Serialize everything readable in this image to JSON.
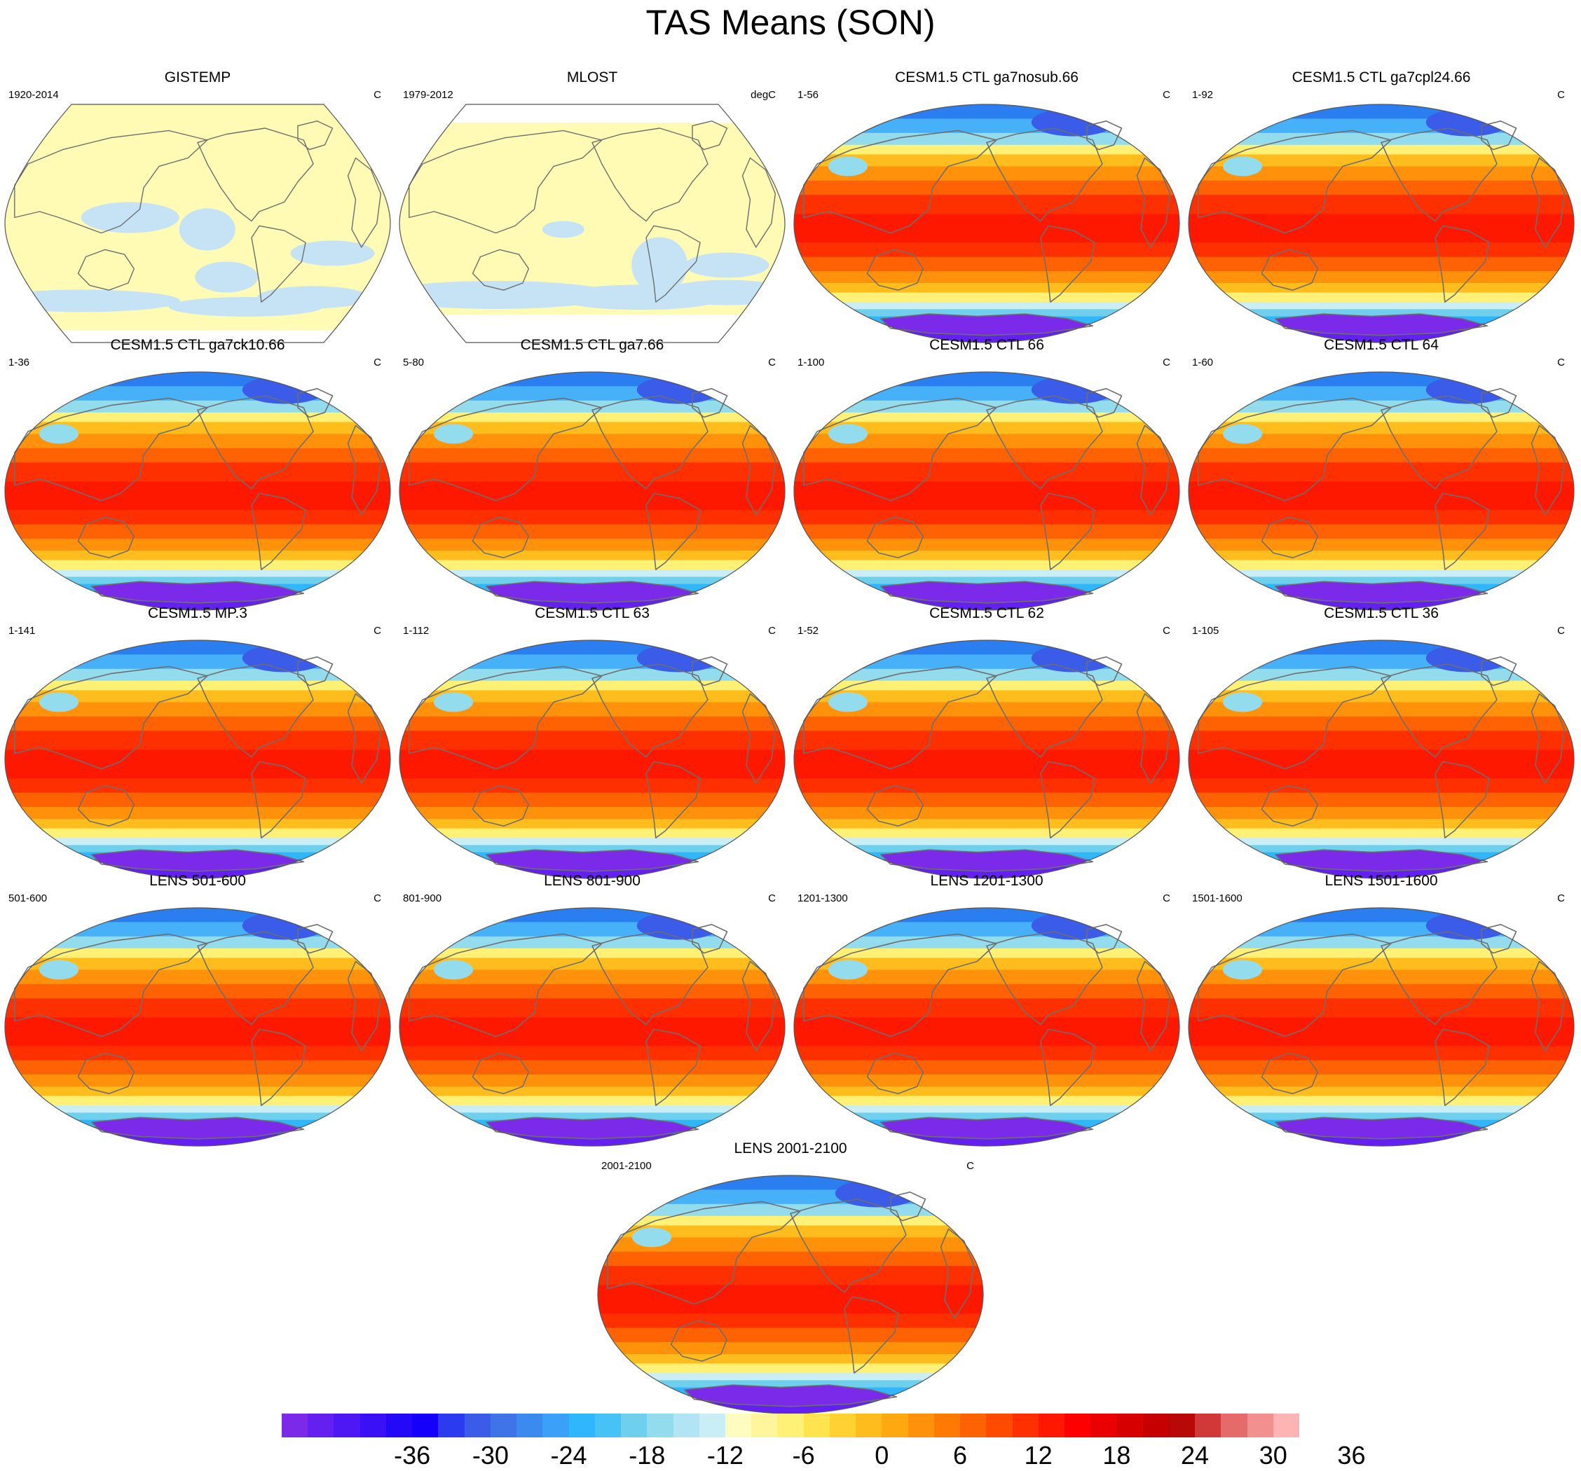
{
  "figure": {
    "title": "TAS Means (SON)"
  },
  "colors": {
    "obs_warm": "#fffbb5",
    "obs_cold": "#c5e3f5",
    "land_outline": "#6e6e6e"
  },
  "panels": [
    {
      "title": "GISTEMP",
      "years": "1920-2014",
      "units": "C",
      "style": "obs"
    },
    {
      "title": "MLOST",
      "years": "1979-2012",
      "units": "degC",
      "style": "obs"
    },
    {
      "title": "CESM1.5 CTL ga7nosub.66",
      "years": "1-56",
      "units": "C",
      "style": "model"
    },
    {
      "title": "CESM1.5 CTL ga7cpl24.66",
      "years": "1-92",
      "units": "C",
      "style": "model"
    },
    {
      "title": "CESM1.5 CTL ga7ck10.66",
      "years": "1-36",
      "units": "C",
      "style": "model"
    },
    {
      "title": "CESM1.5 CTL ga7.66",
      "years": "5-80",
      "units": "C",
      "style": "model"
    },
    {
      "title": "CESM1.5 CTL 66",
      "years": "1-100",
      "units": "C",
      "style": "model"
    },
    {
      "title": "CESM1.5 CTL 64",
      "years": "1-60",
      "units": "C",
      "style": "model"
    },
    {
      "title": "CESM1.5 MP.3",
      "years": "1-141",
      "units": "C",
      "style": "model"
    },
    {
      "title": "CESM1.5 CTL 63",
      "years": "1-112",
      "units": "C",
      "style": "model"
    },
    {
      "title": "CESM1.5 CTL 62",
      "years": "1-52",
      "units": "C",
      "style": "model"
    },
    {
      "title": "CESM1.5 CTL 36",
      "years": "1-105",
      "units": "C",
      "style": "model"
    },
    {
      "title": "LENS 501-600",
      "years": "501-600",
      "units": "C",
      "style": "model"
    },
    {
      "title": "LENS 801-900",
      "years": "801-900",
      "units": "C",
      "style": "model"
    },
    {
      "title": "LENS 1201-1300",
      "years": "1201-1300",
      "units": "C",
      "style": "model"
    },
    {
      "title": "LENS 1501-1600",
      "years": "1501-1600",
      "units": "C",
      "style": "model"
    },
    {
      "title": "LENS 2001-2100",
      "years": "2001-2100",
      "units": "C",
      "style": "model"
    }
  ],
  "colorbar": {
    "colors": [
      "#7a2ae8",
      "#6420f0",
      "#4e18f4",
      "#3a10f6",
      "#2408f8",
      "#1400fb",
      "#2a3bf0",
      "#3a5ce8",
      "#3f73e8",
      "#3a8af0",
      "#3aa0f8",
      "#2fb6fc",
      "#46c3f4",
      "#6fd0ee",
      "#93dcee",
      "#b1e5f3",
      "#c9eef6",
      "#fffcc0",
      "#fff59a",
      "#fff076",
      "#ffe34f",
      "#ffd231",
      "#ffbd1d",
      "#ffa810",
      "#ff920a",
      "#ff7a05",
      "#ff6202",
      "#ff4a00",
      "#ff3000",
      "#ff1800",
      "#ff0000",
      "#ea0000",
      "#d70000",
      "#c60000",
      "#b80808",
      "#d13838",
      "#e56a6a",
      "#f29090",
      "#ffb4b4"
    ],
    "tick_labels": [
      "-36",
      "-30",
      "-24",
      "-18",
      "-12",
      "-6",
      "0",
      "6",
      "12",
      "18",
      "24",
      "30",
      "36"
    ]
  }
}
